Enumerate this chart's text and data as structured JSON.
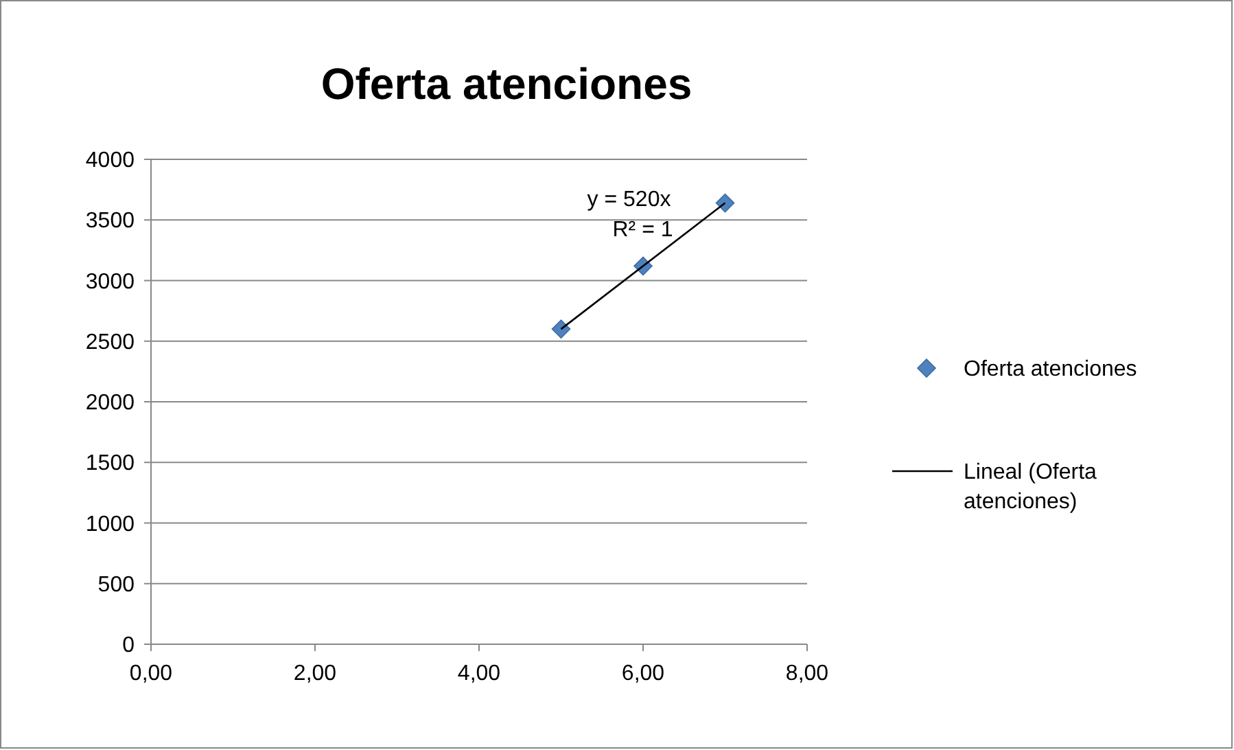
{
  "chart_data": {
    "type": "scatter",
    "title": "Oferta atenciones",
    "xlim": [
      0,
      8
    ],
    "xticks": [
      {
        "value": 0,
        "label": "0,00"
      },
      {
        "value": 2,
        "label": "2,00"
      },
      {
        "value": 4,
        "label": "4,00"
      },
      {
        "value": 6,
        "label": "6,00"
      },
      {
        "value": 8,
        "label": "8,00"
      }
    ],
    "ylim": [
      0,
      4000
    ],
    "yticks": [
      0,
      500,
      1000,
      1500,
      2000,
      2500,
      3000,
      3500,
      4000
    ],
    "grid": "y",
    "legend": "right",
    "series": [
      {
        "name": "Oferta atenciones",
        "marker": "diamond",
        "color": "#4f81bd",
        "x": [
          5,
          6,
          7
        ],
        "values": [
          2600,
          3120,
          3640
        ]
      },
      {
        "name": "Lineal (Oferta atenciones)",
        "type": "line",
        "marker": "none",
        "line_style": "solid",
        "color": "#000000",
        "x": [
          5,
          7
        ],
        "values": [
          2600,
          3640
        ]
      }
    ],
    "annotations": [
      "y = 520x",
      "R² = 1"
    ]
  }
}
